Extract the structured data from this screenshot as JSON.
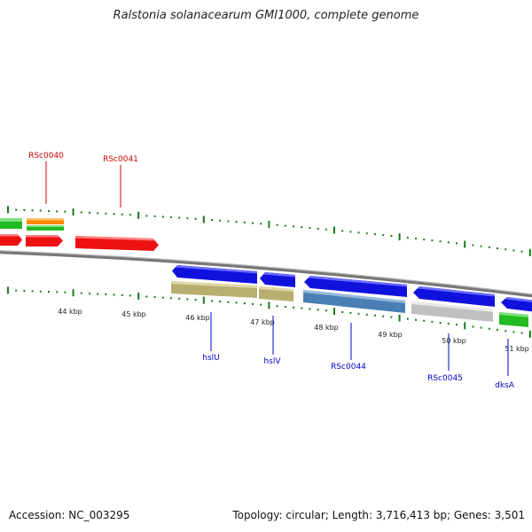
{
  "header": {
    "title": "Ralstonia solanacearum GMI1000, complete genome"
  },
  "footer": {
    "accession": "Accession: NC_003295",
    "summary": "Topology: circular; Length: 3,716,413 bp; Genes: 3,501"
  },
  "ticks": [
    "44 kbp",
    "45 kbp",
    "46 kbp",
    "47 kbp",
    "48 kbp",
    "49 kbp",
    "50 kbp",
    "51 kbp"
  ],
  "top_genes": [
    "RSc0040",
    "RSc0041"
  ],
  "bottom_genes": [
    "hslU",
    "hslV",
    "RSc0044",
    "RSc0045",
    "dksA"
  ],
  "colors": {
    "top_label": "#cc0000",
    "bottom_label": "#0000cc",
    "tick": "#1a7a1a",
    "red_feature": "#ee1111",
    "blue_feature": "#1111dd",
    "green_feature": "#22bb22",
    "orange_feature": "#ff8800",
    "olive_feature": "#b8ae70",
    "steel_feature": "#4a7fb5",
    "grey_feature": "#c0c0c0",
    "backbone": "#888888"
  }
}
